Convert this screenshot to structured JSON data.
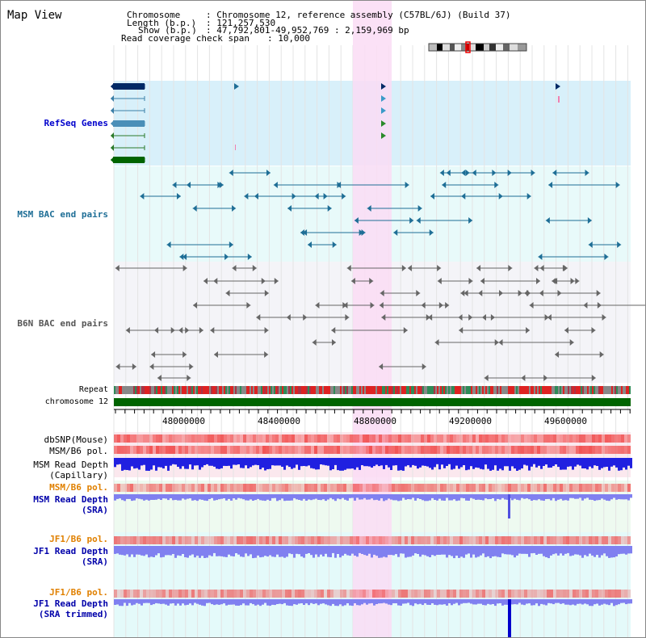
{
  "page": {
    "title": "Map View"
  },
  "info": {
    "chromosome_key": "Chromosome",
    "chromosome_val": ": Chromosome 12, reference assembly (C57BL/6J) (Build 37)",
    "length_key": "Length (b.p.)",
    "length_val": ": 121,257,530",
    "show_key": "Show (b.p.)",
    "show_val": ": 47,792,801-49,952,769 : 2,159,969 bp",
    "span_key": "Read coverage check span",
    "span_val": ": 10,000"
  },
  "tracks": {
    "refseq": {
      "label": "RefSeq Genes",
      "color": "#0000cc"
    },
    "msm_bac": {
      "label": "MSM BAC end pairs",
      "color": "#1e6e96"
    },
    "b6n_bac": {
      "label": "B6N BAC end pairs",
      "color": "#555555"
    },
    "repeat": {
      "label": "Repeat"
    },
    "chromosome": {
      "label": "chromosome 12"
    },
    "dbsnp": {
      "label": "dbSNP(Mouse)"
    },
    "msm_b6_pol": {
      "label": "MSM/B6 pol."
    },
    "msm_depth_cap_1": {
      "label": "MSM Read Depth"
    },
    "msm_depth_cap_2": {
      "label": "(Capillary)"
    },
    "msm_b6_pol_2": {
      "label": "MSM/B6 pol.",
      "color": "#e08000"
    },
    "msm_depth_sra_1": {
      "label": "MSM Read Depth",
      "color": "#0000aa"
    },
    "msm_depth_sra_2": {
      "label": "(SRA)",
      "color": "#0000aa"
    },
    "jf1_b6_pol": {
      "label": "JF1/B6 pol.",
      "color": "#e08000"
    },
    "jf1_depth_sra_1": {
      "label": "JF1 Read Depth",
      "color": "#0000aa"
    },
    "jf1_depth_sra_2": {
      "label": "(SRA)",
      "color": "#0000aa"
    },
    "jf1_b6_pol_2": {
      "label": "JF1/B6 pol.",
      "color": "#e08000"
    },
    "jf1_depth_trim_1": {
      "label": "JF1 Read Depth",
      "color": "#0000aa"
    },
    "jf1_depth_trim_2": {
      "label": "(SRA trimmed)",
      "color": "#0000aa"
    }
  },
  "axis": {
    "ticks": [
      "48000000",
      "48400000",
      "48800000",
      "49200000",
      "49600000"
    ]
  },
  "colors": {
    "highlight": "#fadcf5",
    "refseq_bg": "#d8f0fa",
    "msm_bac_bg": "#e8fafa",
    "b6n_bac_bg": "#f4f4f8",
    "chromosome_bar": "#006400",
    "coverage_blue": "#2020e0",
    "sra_blue": "#8080f0",
    "pol_red": "#f04040"
  }
}
